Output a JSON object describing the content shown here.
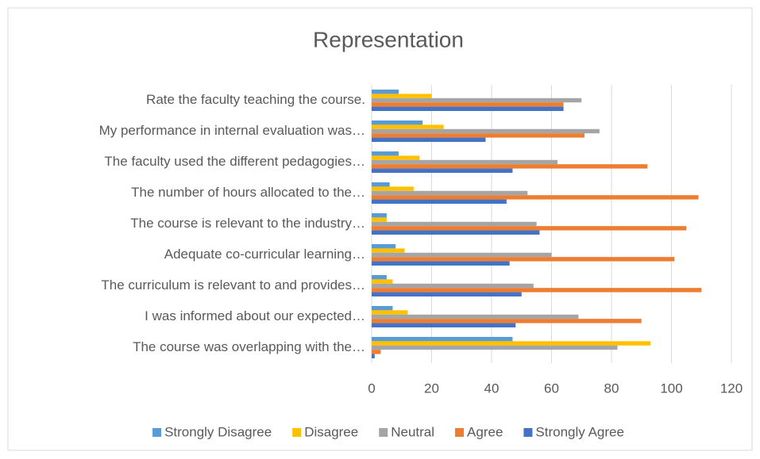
{
  "chart_data": {
    "type": "bar",
    "orientation": "horizontal",
    "title": "Representation",
    "categories": [
      "Rate the faculty teaching the course.",
      "My performance in internal evaluation was…",
      "The faculty used the different pedagogies…",
      "The number of hours allocated to the…",
      "The course is relevant to the industry…",
      "Adequate co-curricular learning…",
      "The curriculum is relevant to and provides…",
      "I was informed about our expected…",
      "The course was overlapping with the…"
    ],
    "series": [
      {
        "name": "Strongly Disagree",
        "color": "#5b9bd5",
        "values": [
          9,
          17,
          9,
          6,
          5,
          8,
          5,
          7,
          47
        ]
      },
      {
        "name": "Disagree",
        "color": "#ffc000",
        "values": [
          20,
          24,
          16,
          14,
          5,
          11,
          7,
          12,
          93
        ]
      },
      {
        "name": "Neutral",
        "color": "#a5a5a5",
        "values": [
          70,
          76,
          62,
          52,
          55,
          60,
          54,
          69,
          82
        ]
      },
      {
        "name": "Agree",
        "color": "#ed7d31",
        "values": [
          64,
          71,
          92,
          109,
          105,
          101,
          110,
          90,
          3
        ]
      },
      {
        "name": "Strongly Agree",
        "color": "#4472c4",
        "values": [
          64,
          38,
          47,
          45,
          56,
          46,
          50,
          48,
          1
        ]
      }
    ],
    "xlim": [
      0,
      120
    ],
    "xticks": [
      0,
      20,
      40,
      60,
      80,
      100,
      120
    ],
    "grid": true,
    "legend": "bottom"
  }
}
